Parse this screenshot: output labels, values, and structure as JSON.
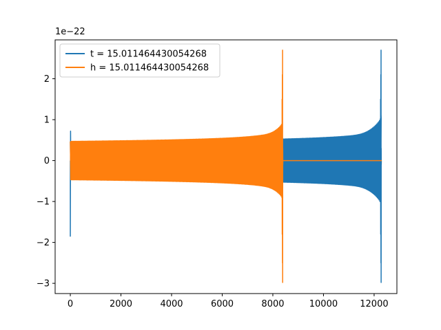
{
  "chart_data": {
    "type": "line",
    "title": "",
    "xlabel": "",
    "ylabel": "",
    "y_offset_label": "1e−22",
    "xlim": [
      -600,
      12900
    ],
    "ylim": [
      -3.25,
      2.95
    ],
    "x_ticks": [
      0,
      2000,
      4000,
      6000,
      8000,
      10000,
      12000
    ],
    "x_tick_labels": [
      "0",
      "2000",
      "4000",
      "6000",
      "8000",
      "10000",
      "12000"
    ],
    "y_ticks": [
      -3,
      -2,
      -1,
      0,
      1,
      2
    ],
    "y_tick_labels": [
      "−3",
      "−2",
      "−1",
      "0",
      "1",
      "2"
    ],
    "grid": false,
    "legend_position": "upper left",
    "series": [
      {
        "name": "t = 15.011464430054268",
        "color": "#1f77b4",
        "segments": [
          {
            "kind": "spike",
            "x": 0,
            "ymin": -1.85,
            "ymax": 0.72
          },
          {
            "kind": "chirp",
            "x_start": 0,
            "x_end": 12280,
            "amp_start": 0.46,
            "amp_before_merger": 1.1,
            "ymax": 2.7,
            "ymin": -2.98
          }
        ]
      },
      {
        "name": "h = 15.011464430054268",
        "color": "#ff7f0e",
        "segments": [
          {
            "kind": "chirp",
            "x_start": 0,
            "x_end": 8390,
            "amp_start": 0.47,
            "amp_before_merger": 0.9,
            "ymax": 2.7,
            "ymin": -2.98
          },
          {
            "kind": "flat",
            "x_start": 8390,
            "x_end": 12300,
            "y": 0
          }
        ]
      }
    ]
  }
}
